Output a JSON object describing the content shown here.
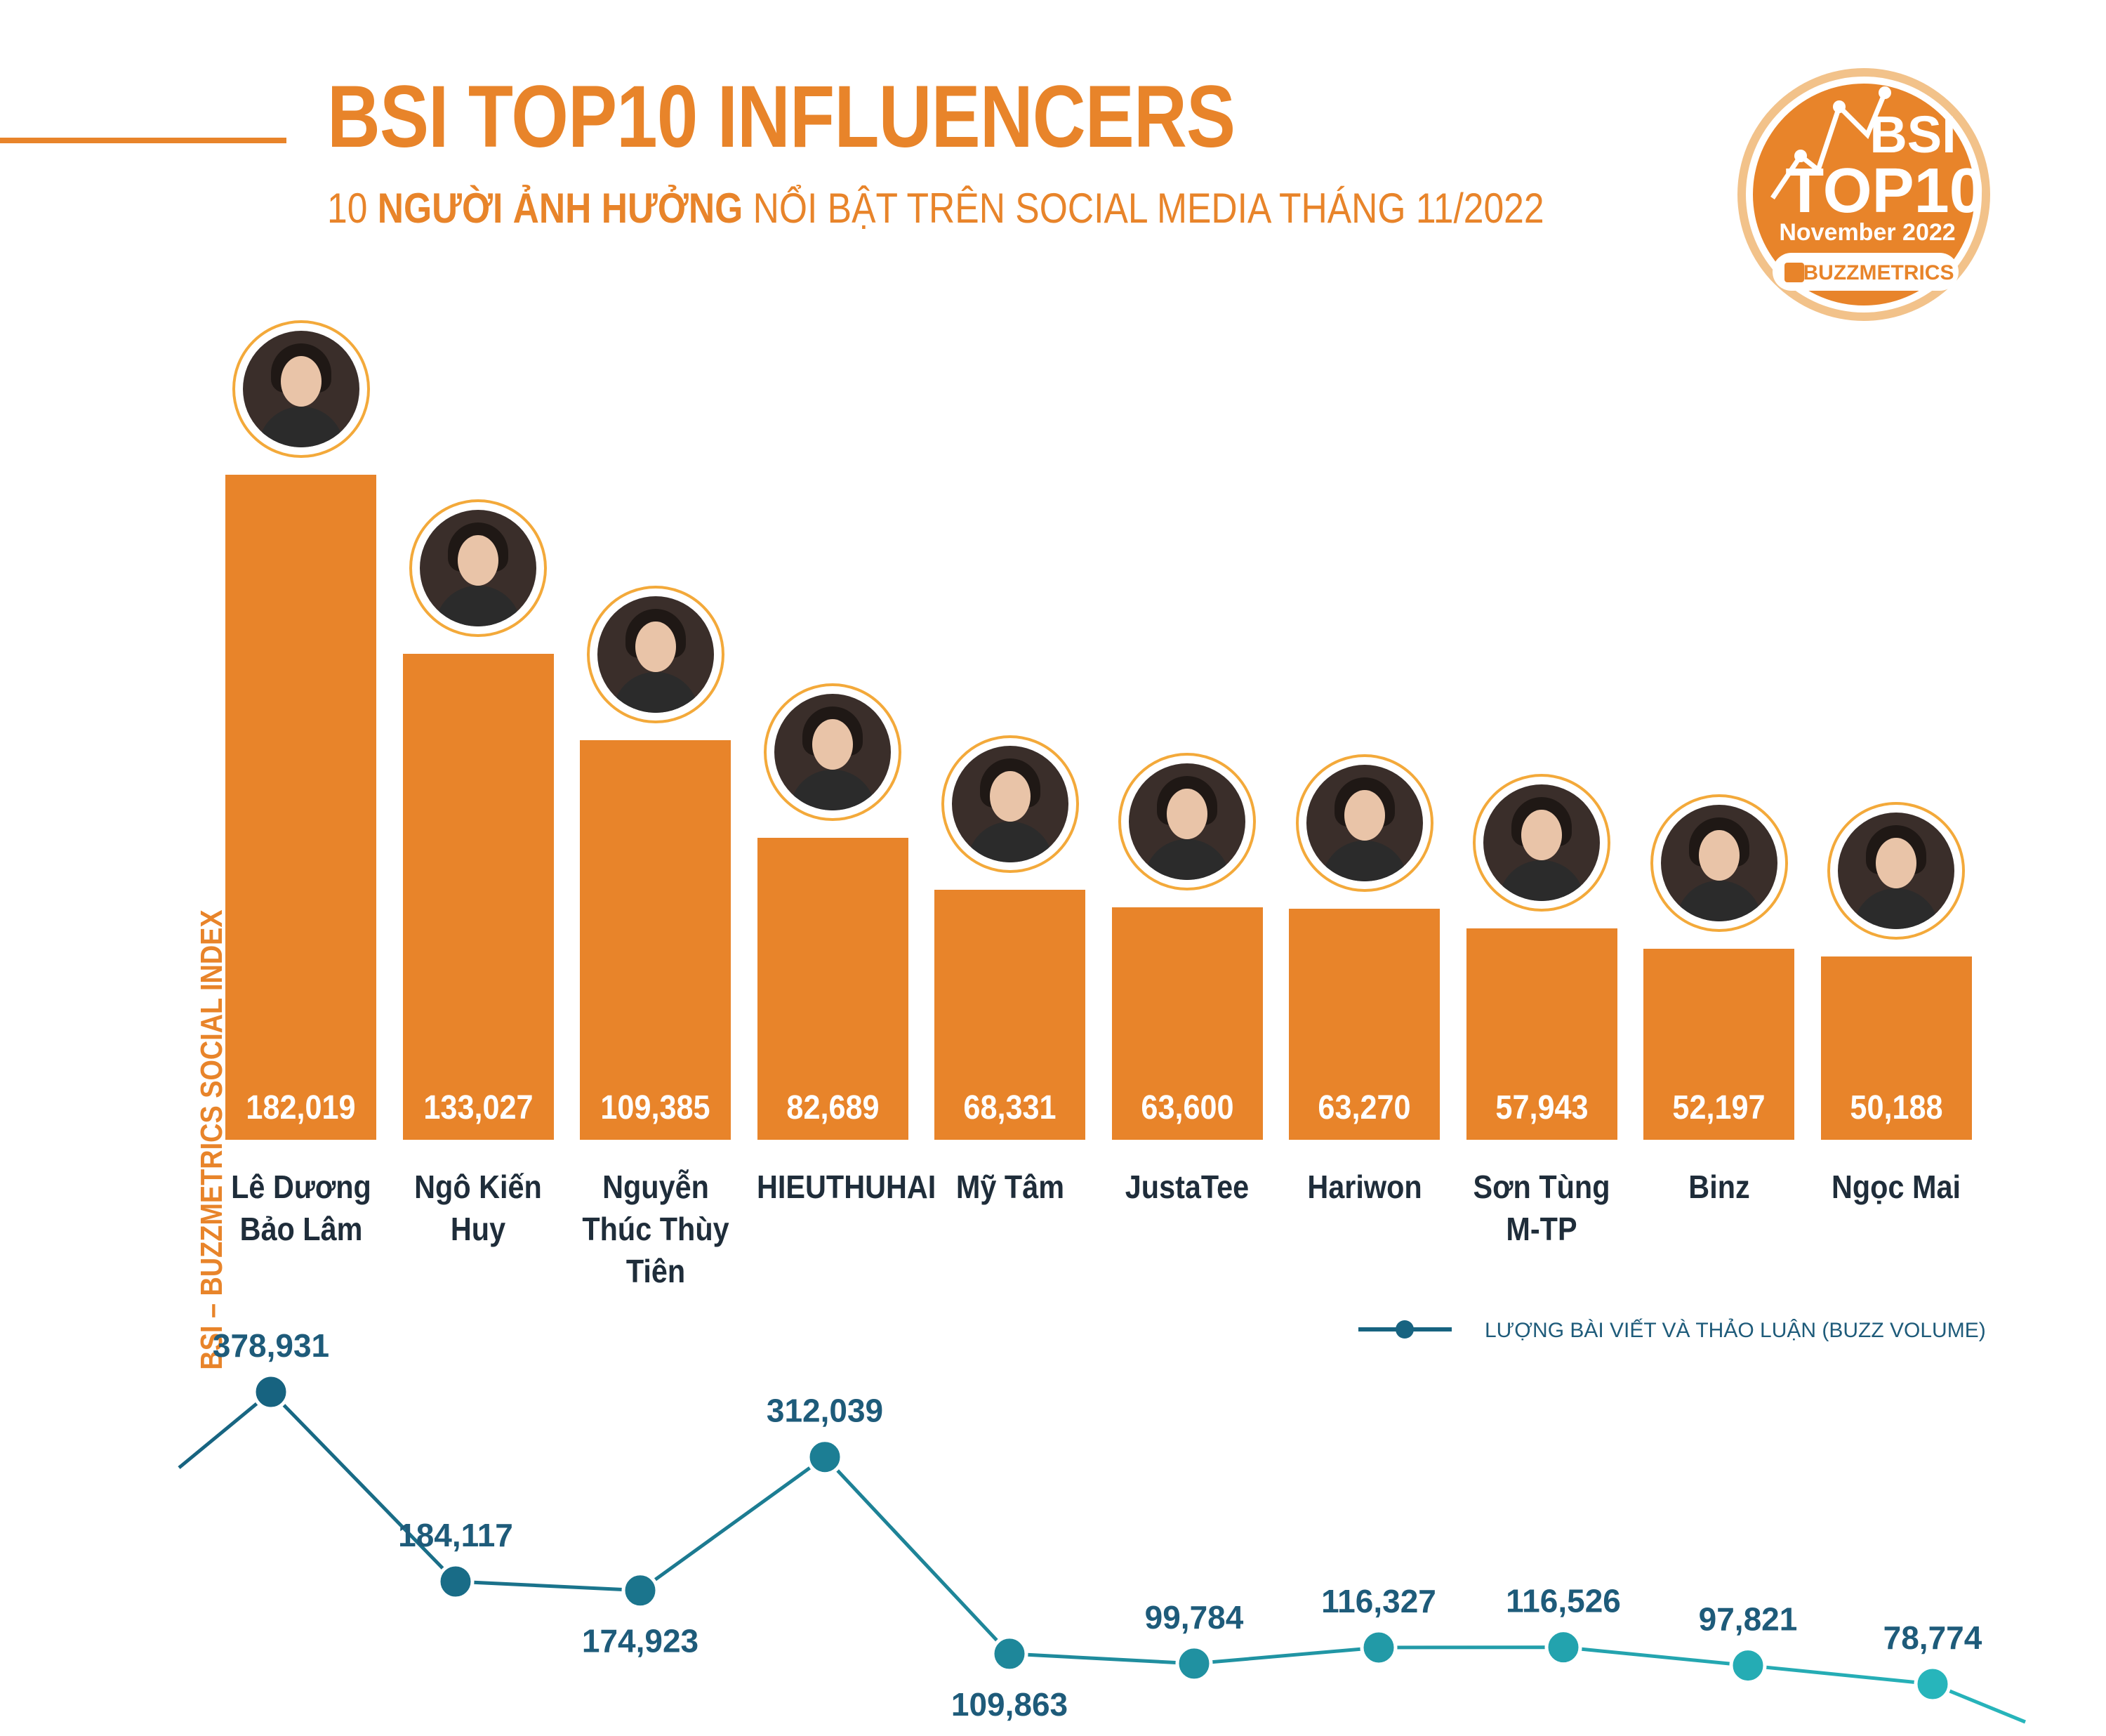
{
  "header": {
    "title": "BSI TOP10 INFLUENCERS",
    "subtitle_prefix": "10 ",
    "subtitle_bold": "NGƯỜI ẢNH HƯỞNG",
    "subtitle_suffix": " NỔI BẬT TRÊN SOCIAL MEDIA THÁNG 11/2022"
  },
  "badge": {
    "line1": "BSI",
    "line2": "TOP10",
    "line3": "November 2022",
    "brand": "BUZZMETRICS"
  },
  "colors": {
    "accent": "#e8842a",
    "line_dark": "#176380",
    "line_light": "#27b5bb",
    "name_text": "#1f2d3a"
  },
  "chart_data": [
    {
      "type": "bar",
      "ylabel": "BSI – BUZZMETRICS SOCIAL INDEX",
      "ylim": [
        0,
        182019
      ],
      "categories": [
        "Lê Dương\nBảo Lâm",
        "Ngô Kiến\nHuy",
        "Nguyễn\nThúc Thùy\nTiên",
        "HIEUTHUHAI",
        "Mỹ Tâm",
        "JustaTee",
        "Hariwon",
        "Sơn Tùng\nM-TP",
        "Binz",
        "Ngọc Mai"
      ],
      "values": [
        182019,
        133027,
        109385,
        82689,
        68331,
        63600,
        63270,
        57943,
        52197,
        50188
      ],
      "value_labels": [
        "182,019",
        "133,027",
        "109,385",
        "82,689",
        "68,331",
        "63,600",
        "63,270",
        "57,943",
        "52,197",
        "50,188"
      ]
    },
    {
      "type": "line",
      "series": [
        {
          "name": "LƯỢNG BÀI VIẾT VÀ THẢO LUẬN (BUZZ VOLUME)",
          "values": [
            378931,
            184117,
            174923,
            312039,
            109863,
            99784,
            116327,
            116526,
            97821,
            78774
          ],
          "value_labels": [
            "378,931",
            "184,117",
            "174,923",
            "312,039",
            "109,863",
            "99,784",
            "116,327",
            "116,526",
            "97,821",
            "78,774"
          ]
        }
      ]
    }
  ]
}
